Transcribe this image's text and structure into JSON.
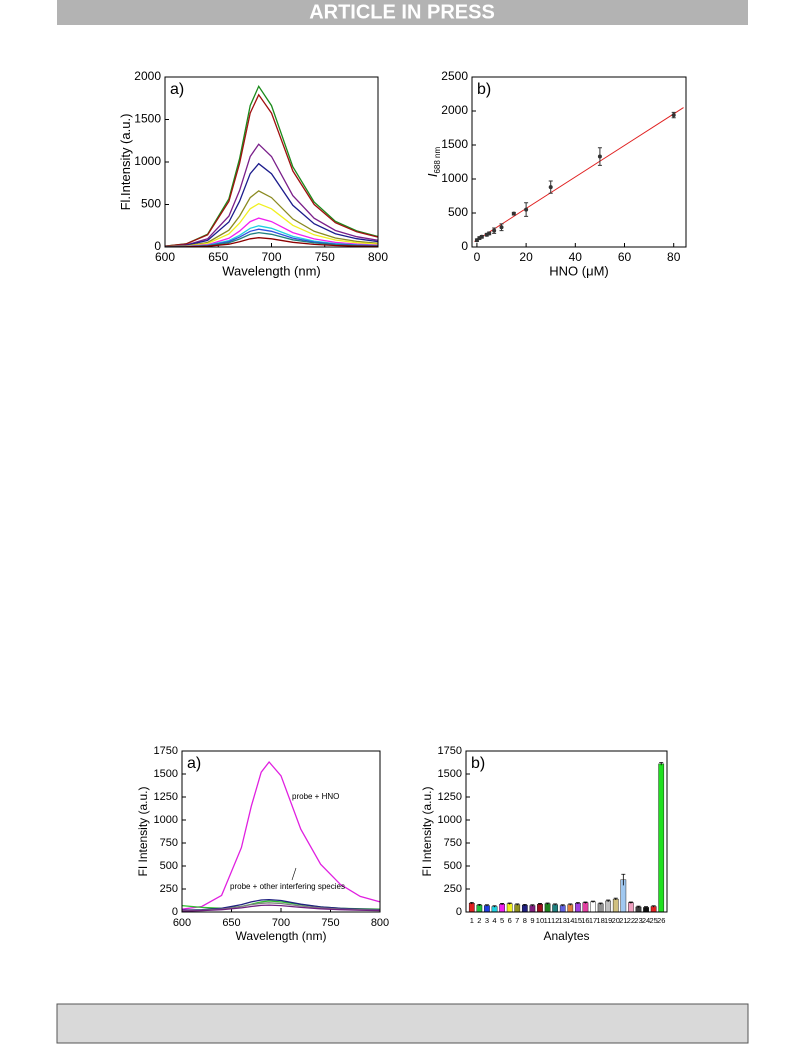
{
  "header": {
    "title": "ARTICLE IN PRESS"
  },
  "chart_data": [
    {
      "type": "line",
      "panel_label": "a)",
      "xlabel": "Wavelength (nm)",
      "ylabel": "Fl.Intensity (a.u.)",
      "xlim": [
        600,
        800
      ],
      "ylim": [
        0,
        2000
      ],
      "xticks": [
        600,
        650,
        700,
        750,
        800
      ],
      "yticks": [
        0,
        500,
        1000,
        1500,
        2000
      ],
      "x": [
        600,
        620,
        640,
        660,
        670,
        680,
        688,
        700,
        720,
        740,
        760,
        780,
        800
      ],
      "series": [
        {
          "color": "#1a8a1a",
          "values": [
            9,
            38,
            151,
            567,
            1040,
            1663,
            1890,
            1663,
            945,
            529,
            302,
            189,
            123
          ]
        },
        {
          "color": "#a01010",
          "values": [
            9,
            36,
            143,
            537,
            985,
            1575,
            1790,
            1575,
            895,
            501,
            286,
            179,
            116
          ]
        },
        {
          "color": "#7a1f8a",
          "values": [
            6,
            24,
            97,
            363,
            666,
            1065,
            1210,
            1065,
            605,
            339,
            194,
            121,
            79
          ]
        },
        {
          "color": "#1c1c8c",
          "values": [
            5,
            20,
            78,
            294,
            539,
            862,
            980,
            862,
            490,
            274,
            157,
            98,
            64
          ]
        },
        {
          "color": "#8a8a20",
          "values": [
            3,
            13,
            53,
            198,
            363,
            581,
            660,
            581,
            330,
            185,
            106,
            66,
            43
          ]
        },
        {
          "color": "#f0f020",
          "values": [
            3,
            10,
            41,
            153,
            281,
            449,
            510,
            449,
            255,
            143,
            82,
            51,
            33
          ]
        },
        {
          "color": "#f020f0",
          "values": [
            2,
            7,
            27,
            102,
            187,
            299,
            340,
            299,
            170,
            95,
            54,
            34,
            22
          ]
        },
        {
          "color": "#20d0e0",
          "values": [
            1,
            5,
            20,
            75,
            138,
            220,
            250,
            220,
            125,
            70,
            40,
            25,
            16
          ]
        },
        {
          "color": "#3050e0",
          "values": [
            1,
            4,
            17,
            63,
            116,
            185,
            210,
            185,
            105,
            59,
            34,
            21,
            14
          ]
        },
        {
          "color": "#208080",
          "values": [
            1,
            3,
            14,
            51,
            94,
            150,
            170,
            150,
            85,
            48,
            27,
            17,
            11
          ]
        },
        {
          "color": "#8b0000",
          "values": [
            1,
            2,
            9,
            33,
            61,
            97,
            110,
            97,
            55,
            31,
            18,
            11,
            7
          ]
        }
      ]
    },
    {
      "type": "scatter",
      "panel_label": "b)",
      "xlabel": "HNO (μM)",
      "ylabel": "I",
      "ylabel_sub": "688 nm",
      "xlim": [
        -2,
        85
      ],
      "ylim": [
        0,
        2500
      ],
      "xticks": [
        0,
        20,
        40,
        60,
        80
      ],
      "yticks": [
        0,
        500,
        1000,
        1500,
        2000,
        2500
      ],
      "x": [
        0,
        1,
        2,
        4,
        5,
        7,
        10,
        15,
        20,
        30,
        50,
        80
      ],
      "values": [
        100,
        130,
        150,
        180,
        200,
        240,
        290,
        490,
        550,
        880,
        1330,
        1940
      ],
      "errors": [
        20,
        20,
        20,
        20,
        20,
        40,
        50,
        20,
        100,
        90,
        130,
        40
      ],
      "color": "#333333",
      "fit_line": {
        "x": [
          -1,
          84
        ],
        "values": [
          80,
          2050
        ],
        "color": "#e02020"
      }
    },
    {
      "type": "line",
      "panel_label": "a)",
      "xlabel": "Wavelength (nm)",
      "ylabel": "FI Intensity (a.u.)",
      "xlim": [
        600,
        800
      ],
      "ylim": [
        0,
        1750
      ],
      "xticks": [
        600,
        650,
        700,
        750,
        800
      ],
      "yticks": [
        0,
        250,
        500,
        750,
        1000,
        1250,
        1500,
        1750
      ],
      "x": [
        600,
        620,
        640,
        660,
        670,
        680,
        688,
        700,
        720,
        740,
        760,
        780,
        800
      ],
      "annotations": [
        "probe + HNO",
        "probe + other interfering species"
      ],
      "series": [
        {
          "color": "#e020e0",
          "values": [
            30,
            60,
            180,
            700,
            1150,
            1520,
            1630,
            1480,
            900,
            520,
            300,
            170,
            110
          ]
        },
        {
          "color": "#30c030",
          "values": [
            70,
            50,
            40,
            60,
            85,
            110,
            120,
            110,
            80,
            55,
            40,
            35,
            30
          ]
        },
        {
          "color": "#202080",
          "values": [
            20,
            25,
            40,
            80,
            110,
            130,
            135,
            125,
            85,
            55,
            40,
            30,
            25
          ]
        },
        {
          "color": "#808080",
          "values": [
            15,
            20,
            30,
            60,
            80,
            95,
            100,
            92,
            65,
            45,
            32,
            25,
            20
          ]
        },
        {
          "color": "#702080",
          "values": [
            10,
            15,
            25,
            45,
            60,
            72,
            75,
            70,
            50,
            35,
            25,
            20,
            15
          ]
        }
      ]
    },
    {
      "type": "bar",
      "panel_label": "b)",
      "xlabel": "Analytes",
      "ylabel": "FI Intensity (a.u.)",
      "ylim": [
        0,
        1750
      ],
      "yticks": [
        0,
        250,
        500,
        750,
        1000,
        1250,
        1500,
        1750
      ],
      "categories": [
        "1",
        "2",
        "3",
        "4",
        "5",
        "6",
        "7",
        "8",
        "9",
        "10",
        "11",
        "12",
        "13",
        "14",
        "15",
        "16",
        "17",
        "18",
        "19",
        "20",
        "21",
        "22",
        "23",
        "24",
        "25",
        "26"
      ],
      "values": [
        95,
        75,
        70,
        60,
        85,
        90,
        80,
        75,
        70,
        85,
        90,
        80,
        70,
        80,
        95,
        100,
        110,
        90,
        120,
        140,
        350,
        100,
        55,
        50,
        60,
        1610
      ],
      "errors": [
        10,
        8,
        8,
        8,
        8,
        8,
        8,
        8,
        8,
        8,
        8,
        8,
        8,
        8,
        8,
        8,
        8,
        8,
        10,
        10,
        60,
        8,
        8,
        8,
        8,
        15
      ],
      "colors": [
        "#e02020",
        "#20c040",
        "#2040e0",
        "#20d0e0",
        "#f020f0",
        "#f0f020",
        "#909020",
        "#202080",
        "#802080",
        "#a01020",
        "#208020",
        "#208080",
        "#6060e0",
        "#e08040",
        "#a040e0",
        "#e040a0",
        "#ffffff",
        "#909090",
        "#c0c0c0",
        "#d0c080",
        "#a0c8f0",
        "#f0a0c0",
        "#404040",
        "#101010",
        "#e02020",
        "#20e020"
      ]
    }
  ]
}
